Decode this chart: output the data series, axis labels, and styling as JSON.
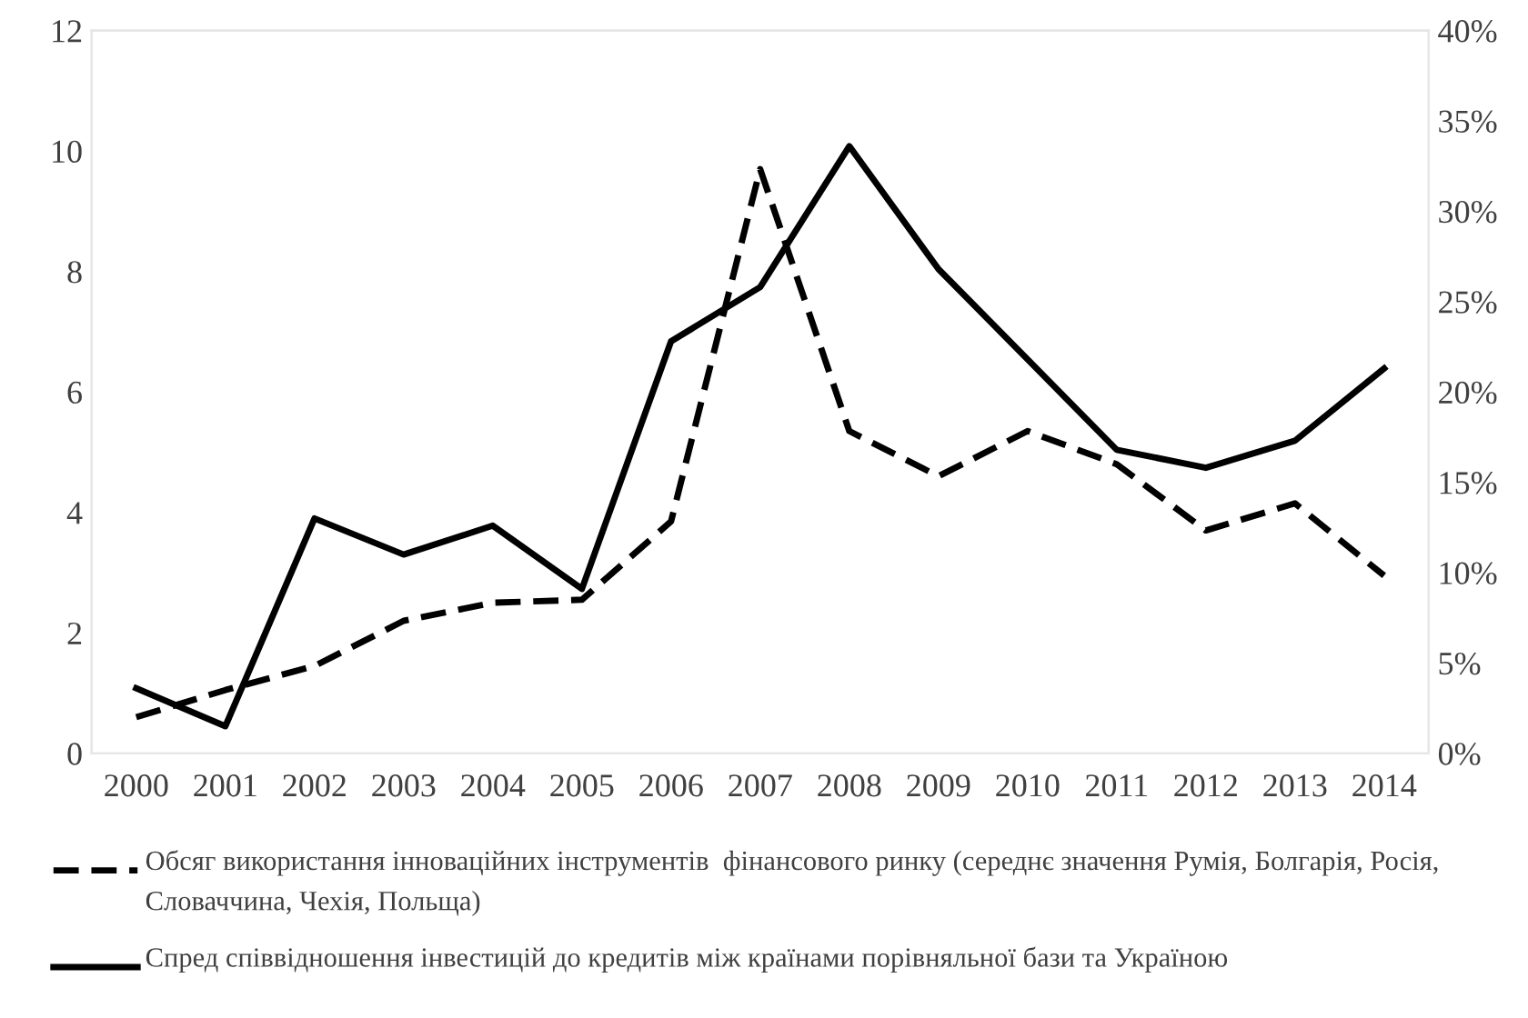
{
  "chart_data": {
    "type": "line",
    "categories": [
      "2000",
      "2001",
      "2002",
      "2003",
      "2004",
      "2005",
      "2006",
      "2007",
      "2008",
      "2009",
      "2010",
      "2011",
      "2012",
      "2013",
      "2014"
    ],
    "series": [
      {
        "name": "Обсяг використання інноваційних інструментів  фінансового ринку (середнє значення Румія, Болгарія, Росія, Словаччина, Чехія, Польща)",
        "color": "#000000",
        "line_style": "dashed",
        "values": [
          0.6,
          1.05,
          1.45,
          2.2,
          2.5,
          2.55,
          3.85,
          9.7,
          5.35,
          4.6,
          5.35,
          4.8,
          3.7,
          4.15,
          2.95
        ]
      },
      {
        "name": "Спред співвідношення інвестицій до кредитів між країнами порівняльної бази та Україною",
        "color": "#000000",
        "line_style": "solid",
        "axis": "y2",
        "values": [
          3.6,
          1.5,
          13,
          11,
          12.6,
          9.1,
          22.8,
          25.8,
          33.6,
          26.8,
          21.8,
          16.8,
          15.8,
          17.3,
          21.3
        ]
      }
    ],
    "ylim": [
      0,
      12
    ],
    "yticks": [
      0,
      2,
      4,
      6,
      8,
      10,
      12
    ],
    "y2lim": [
      0,
      40
    ],
    "y2ticks": [
      {
        "value": 0,
        "label": "0%"
      },
      {
        "value": 5,
        "label": "5%"
      },
      {
        "value": 10,
        "label": "10%"
      },
      {
        "value": 15,
        "label": "15%"
      },
      {
        "value": 20,
        "label": "20%"
      },
      {
        "value": 25,
        "label": "25%"
      },
      {
        "value": 30,
        "label": "30%"
      },
      {
        "value": 35,
        "label": "35%"
      },
      {
        "value": 40,
        "label": "40%"
      }
    ],
    "legend": "bottom",
    "grid": false,
    "marker": "none"
  }
}
